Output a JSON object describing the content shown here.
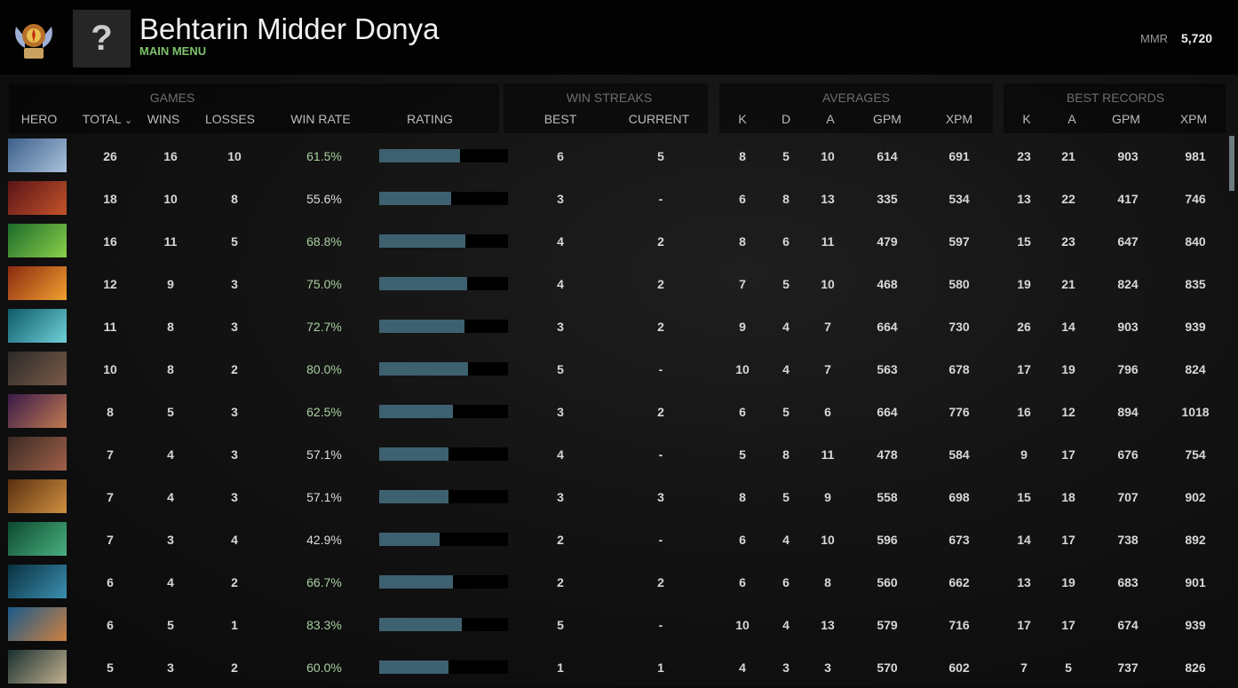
{
  "header": {
    "title": "Behtarin Midder Donya",
    "subtitle": "MAIN MENU",
    "mmr_label": "MMR",
    "mmr_value": "5,720",
    "avatar_glyph": "?"
  },
  "groups": {
    "games": "GAMES",
    "win_streaks": "WIN STREAKS",
    "averages": "AVERAGES",
    "best_records": "BEST RECORDS"
  },
  "columns": {
    "hero": "HERO",
    "total": "TOTAL",
    "sort_icon": "⌄",
    "wins": "WINS",
    "losses": "LOSSES",
    "win_rate": "WIN RATE",
    "rating": "RATING",
    "best": "BEST",
    "current": "CURRENT",
    "k": "K",
    "d": "D",
    "a": "A",
    "gpm": "GPM",
    "xpm": "XPM",
    "best_k": "K",
    "best_a": "A",
    "best_gpm": "GPM",
    "best_xpm": "XPM"
  },
  "colors": {
    "rating_fill": "#3e6170",
    "win_rate_high": "#a8d0a0",
    "win_rate_low": "#dddddd",
    "accent": "#7cc16a"
  },
  "rows": [
    {
      "portrait": [
        "#3d5f8a",
        "#a9c2dc"
      ],
      "total": "26",
      "wins": "16",
      "losses": "10",
      "win_rate": "61.5%",
      "rating": 0.63,
      "best": "6",
      "current": "5",
      "k": "8",
      "d": "5",
      "a": "10",
      "gpm": "614",
      "xpm": "691",
      "bk": "23",
      "ba": "21",
      "bgpm": "903",
      "bxpm": "981"
    },
    {
      "portrait": [
        "#5a1418",
        "#c4532a"
      ],
      "total": "18",
      "wins": "10",
      "losses": "8",
      "win_rate": "55.6%",
      "rating": 0.56,
      "best": "3",
      "current": "-",
      "k": "6",
      "d": "8",
      "a": "13",
      "gpm": "335",
      "xpm": "534",
      "bk": "13",
      "ba": "22",
      "bgpm": "417",
      "bxpm": "746"
    },
    {
      "portrait": [
        "#1d6b2a",
        "#8ad04a"
      ],
      "total": "16",
      "wins": "11",
      "losses": "5",
      "win_rate": "68.8%",
      "rating": 0.67,
      "best": "4",
      "current": "2",
      "k": "8",
      "d": "6",
      "a": "11",
      "gpm": "479",
      "xpm": "597",
      "bk": "15",
      "ba": "23",
      "bgpm": "647",
      "bxpm": "840"
    },
    {
      "portrait": [
        "#8a2a10",
        "#f0a030"
      ],
      "total": "12",
      "wins": "9",
      "losses": "3",
      "win_rate": "75.0%",
      "rating": 0.68,
      "best": "4",
      "current": "2",
      "k": "7",
      "d": "5",
      "a": "10",
      "gpm": "468",
      "xpm": "580",
      "bk": "19",
      "ba": "21",
      "bgpm": "824",
      "bxpm": "835"
    },
    {
      "portrait": [
        "#0d5a6a",
        "#6fd0d8"
      ],
      "total": "11",
      "wins": "8",
      "losses": "3",
      "win_rate": "72.7%",
      "rating": 0.66,
      "best": "3",
      "current": "2",
      "k": "9",
      "d": "4",
      "a": "7",
      "gpm": "664",
      "xpm": "730",
      "bk": "26",
      "ba": "14",
      "bgpm": "903",
      "bxpm": "939"
    },
    {
      "portrait": [
        "#2c2a2a",
        "#7a5a48"
      ],
      "total": "10",
      "wins": "8",
      "losses": "2",
      "win_rate": "80.0%",
      "rating": 0.69,
      "best": "5",
      "current": "-",
      "k": "10",
      "d": "4",
      "a": "7",
      "gpm": "563",
      "xpm": "678",
      "bk": "17",
      "ba": "19",
      "bgpm": "796",
      "bxpm": "824"
    },
    {
      "portrait": [
        "#3a1a4a",
        "#c07a50"
      ],
      "total": "8",
      "wins": "5",
      "losses": "3",
      "win_rate": "62.5%",
      "rating": 0.57,
      "best": "3",
      "current": "2",
      "k": "6",
      "d": "5",
      "a": "6",
      "gpm": "664",
      "xpm": "776",
      "bk": "16",
      "ba": "12",
      "bgpm": "894",
      "bxpm": "1018"
    },
    {
      "portrait": [
        "#3a2a24",
        "#a06048"
      ],
      "total": "7",
      "wins": "4",
      "losses": "3",
      "win_rate": "57.1%",
      "rating": 0.54,
      "best": "4",
      "current": "-",
      "k": "5",
      "d": "8",
      "a": "11",
      "gpm": "478",
      "xpm": "584",
      "bk": "9",
      "ba": "17",
      "bgpm": "676",
      "bxpm": "754"
    },
    {
      "portrait": [
        "#5a3010",
        "#d09040"
      ],
      "total": "7",
      "wins": "4",
      "losses": "3",
      "win_rate": "57.1%",
      "rating": 0.54,
      "best": "3",
      "current": "3",
      "k": "8",
      "d": "5",
      "a": "9",
      "gpm": "558",
      "xpm": "698",
      "bk": "15",
      "ba": "18",
      "bgpm": "707",
      "bxpm": "902"
    },
    {
      "portrait": [
        "#0d4a30",
        "#4ab080"
      ],
      "total": "7",
      "wins": "3",
      "losses": "4",
      "win_rate": "42.9%",
      "rating": 0.47,
      "best": "2",
      "current": "-",
      "k": "6",
      "d": "4",
      "a": "10",
      "gpm": "596",
      "xpm": "673",
      "bk": "14",
      "ba": "17",
      "bgpm": "738",
      "bxpm": "892"
    },
    {
      "portrait": [
        "#0a3040",
        "#3a90b0"
      ],
      "total": "6",
      "wins": "4",
      "losses": "2",
      "win_rate": "66.7%",
      "rating": 0.57,
      "best": "2",
      "current": "2",
      "k": "6",
      "d": "6",
      "a": "8",
      "gpm": "560",
      "xpm": "662",
      "bk": "13",
      "ba": "19",
      "bgpm": "683",
      "bxpm": "901"
    },
    {
      "portrait": [
        "#1a5a8a",
        "#d08040"
      ],
      "total": "6",
      "wins": "5",
      "losses": "1",
      "win_rate": "83.3%",
      "rating": 0.64,
      "best": "5",
      "current": "-",
      "k": "10",
      "d": "4",
      "a": "13",
      "gpm": "579",
      "xpm": "716",
      "bk": "17",
      "ba": "17",
      "bgpm": "674",
      "bxpm": "939"
    },
    {
      "portrait": [
        "#1a3030",
        "#c0b090"
      ],
      "total": "5",
      "wins": "3",
      "losses": "2",
      "win_rate": "60.0%",
      "rating": 0.54,
      "best": "1",
      "current": "1",
      "k": "4",
      "d": "3",
      "a": "3",
      "gpm": "570",
      "xpm": "602",
      "bk": "7",
      "ba": "5",
      "bgpm": "737",
      "bxpm": "826"
    }
  ]
}
